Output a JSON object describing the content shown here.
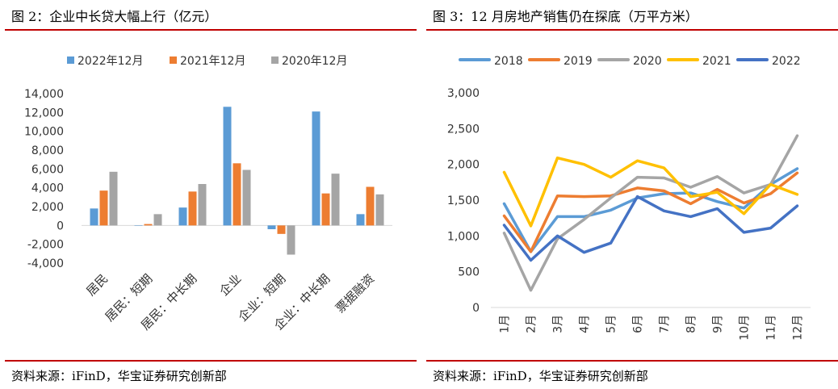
{
  "left": {
    "title": "图 2：企业中长贷大幅上行（亿元）",
    "source": "资料来源：iFinD，华宝证券研究创新部",
    "chart_data": {
      "type": "bar",
      "categories": [
        "居民",
        "居民：短期",
        "居民：中长期",
        "企业",
        "企业：短期",
        "企业：中长期",
        "票据融资"
      ],
      "series": [
        {
          "name": "2022年12月",
          "color": "#5b9bd5",
          "values": [
            1800,
            0,
            1900,
            12600,
            -400,
            12100,
            1200
          ]
        },
        {
          "name": "2021年12月",
          "color": "#ed7d31",
          "values": [
            3700,
            150,
            3600,
            6600,
            -900,
            3400,
            4100
          ]
        },
        {
          "name": "2020年12月",
          "color": "#a5a5a5",
          "values": [
            5700,
            1200,
            4400,
            5900,
            -3100,
            5500,
            3300
          ]
        }
      ],
      "ylim": [
        -4000,
        14000
      ],
      "yticks": [
        -4000,
        -2000,
        0,
        2000,
        4000,
        6000,
        8000,
        10000,
        12000,
        14000
      ],
      "ytick_labels": [
        "-4,000",
        "-2,000",
        "0",
        "2,000",
        "4,000",
        "6,000",
        "8,000",
        "10,000",
        "12,000",
        "14,000"
      ],
      "legend": "top"
    }
  },
  "right": {
    "title": "图 3：12 月房地产销售仍在探底（万平方米）",
    "source": "资料来源：iFinD，华宝证券研究创新部",
    "chart_data": {
      "type": "line",
      "categories": [
        "1月",
        "2月",
        "3月",
        "4月",
        "5月",
        "6月",
        "7月",
        "8月",
        "9月",
        "10月",
        "11月",
        "12月"
      ],
      "series": [
        {
          "name": "2018",
          "color": "#5b9bd5",
          "values": [
            1450,
            780,
            1270,
            1270,
            1360,
            1530,
            1590,
            1600,
            1480,
            1390,
            1720,
            1940
          ]
        },
        {
          "name": "2019",
          "color": "#ed7d31",
          "values": [
            1280,
            780,
            1560,
            1550,
            1560,
            1670,
            1630,
            1450,
            1650,
            1460,
            1590,
            1880
          ]
        },
        {
          "name": "2020",
          "color": "#a5a5a5",
          "values": [
            1040,
            240,
            960,
            1230,
            1530,
            1820,
            1810,
            1680,
            1830,
            1600,
            1720,
            2400
          ]
        },
        {
          "name": "2021",
          "color": "#ffc000",
          "values": [
            1890,
            1140,
            2090,
            2000,
            1820,
            2050,
            1950,
            1550,
            1610,
            1310,
            1720,
            1580
          ]
        },
        {
          "name": "2022",
          "color": "#4472c4",
          "values": [
            1150,
            660,
            1000,
            770,
            900,
            1550,
            1350,
            1270,
            1380,
            1050,
            1110,
            1420
          ]
        }
      ],
      "ylim": [
        0,
        3000
      ],
      "yticks": [
        0,
        500,
        1000,
        1500,
        2000,
        2500,
        3000
      ],
      "ytick_labels": [
        "0",
        "500",
        "1,000",
        "1,500",
        "2,000",
        "2,500",
        "3,000"
      ],
      "legend": "top"
    }
  }
}
